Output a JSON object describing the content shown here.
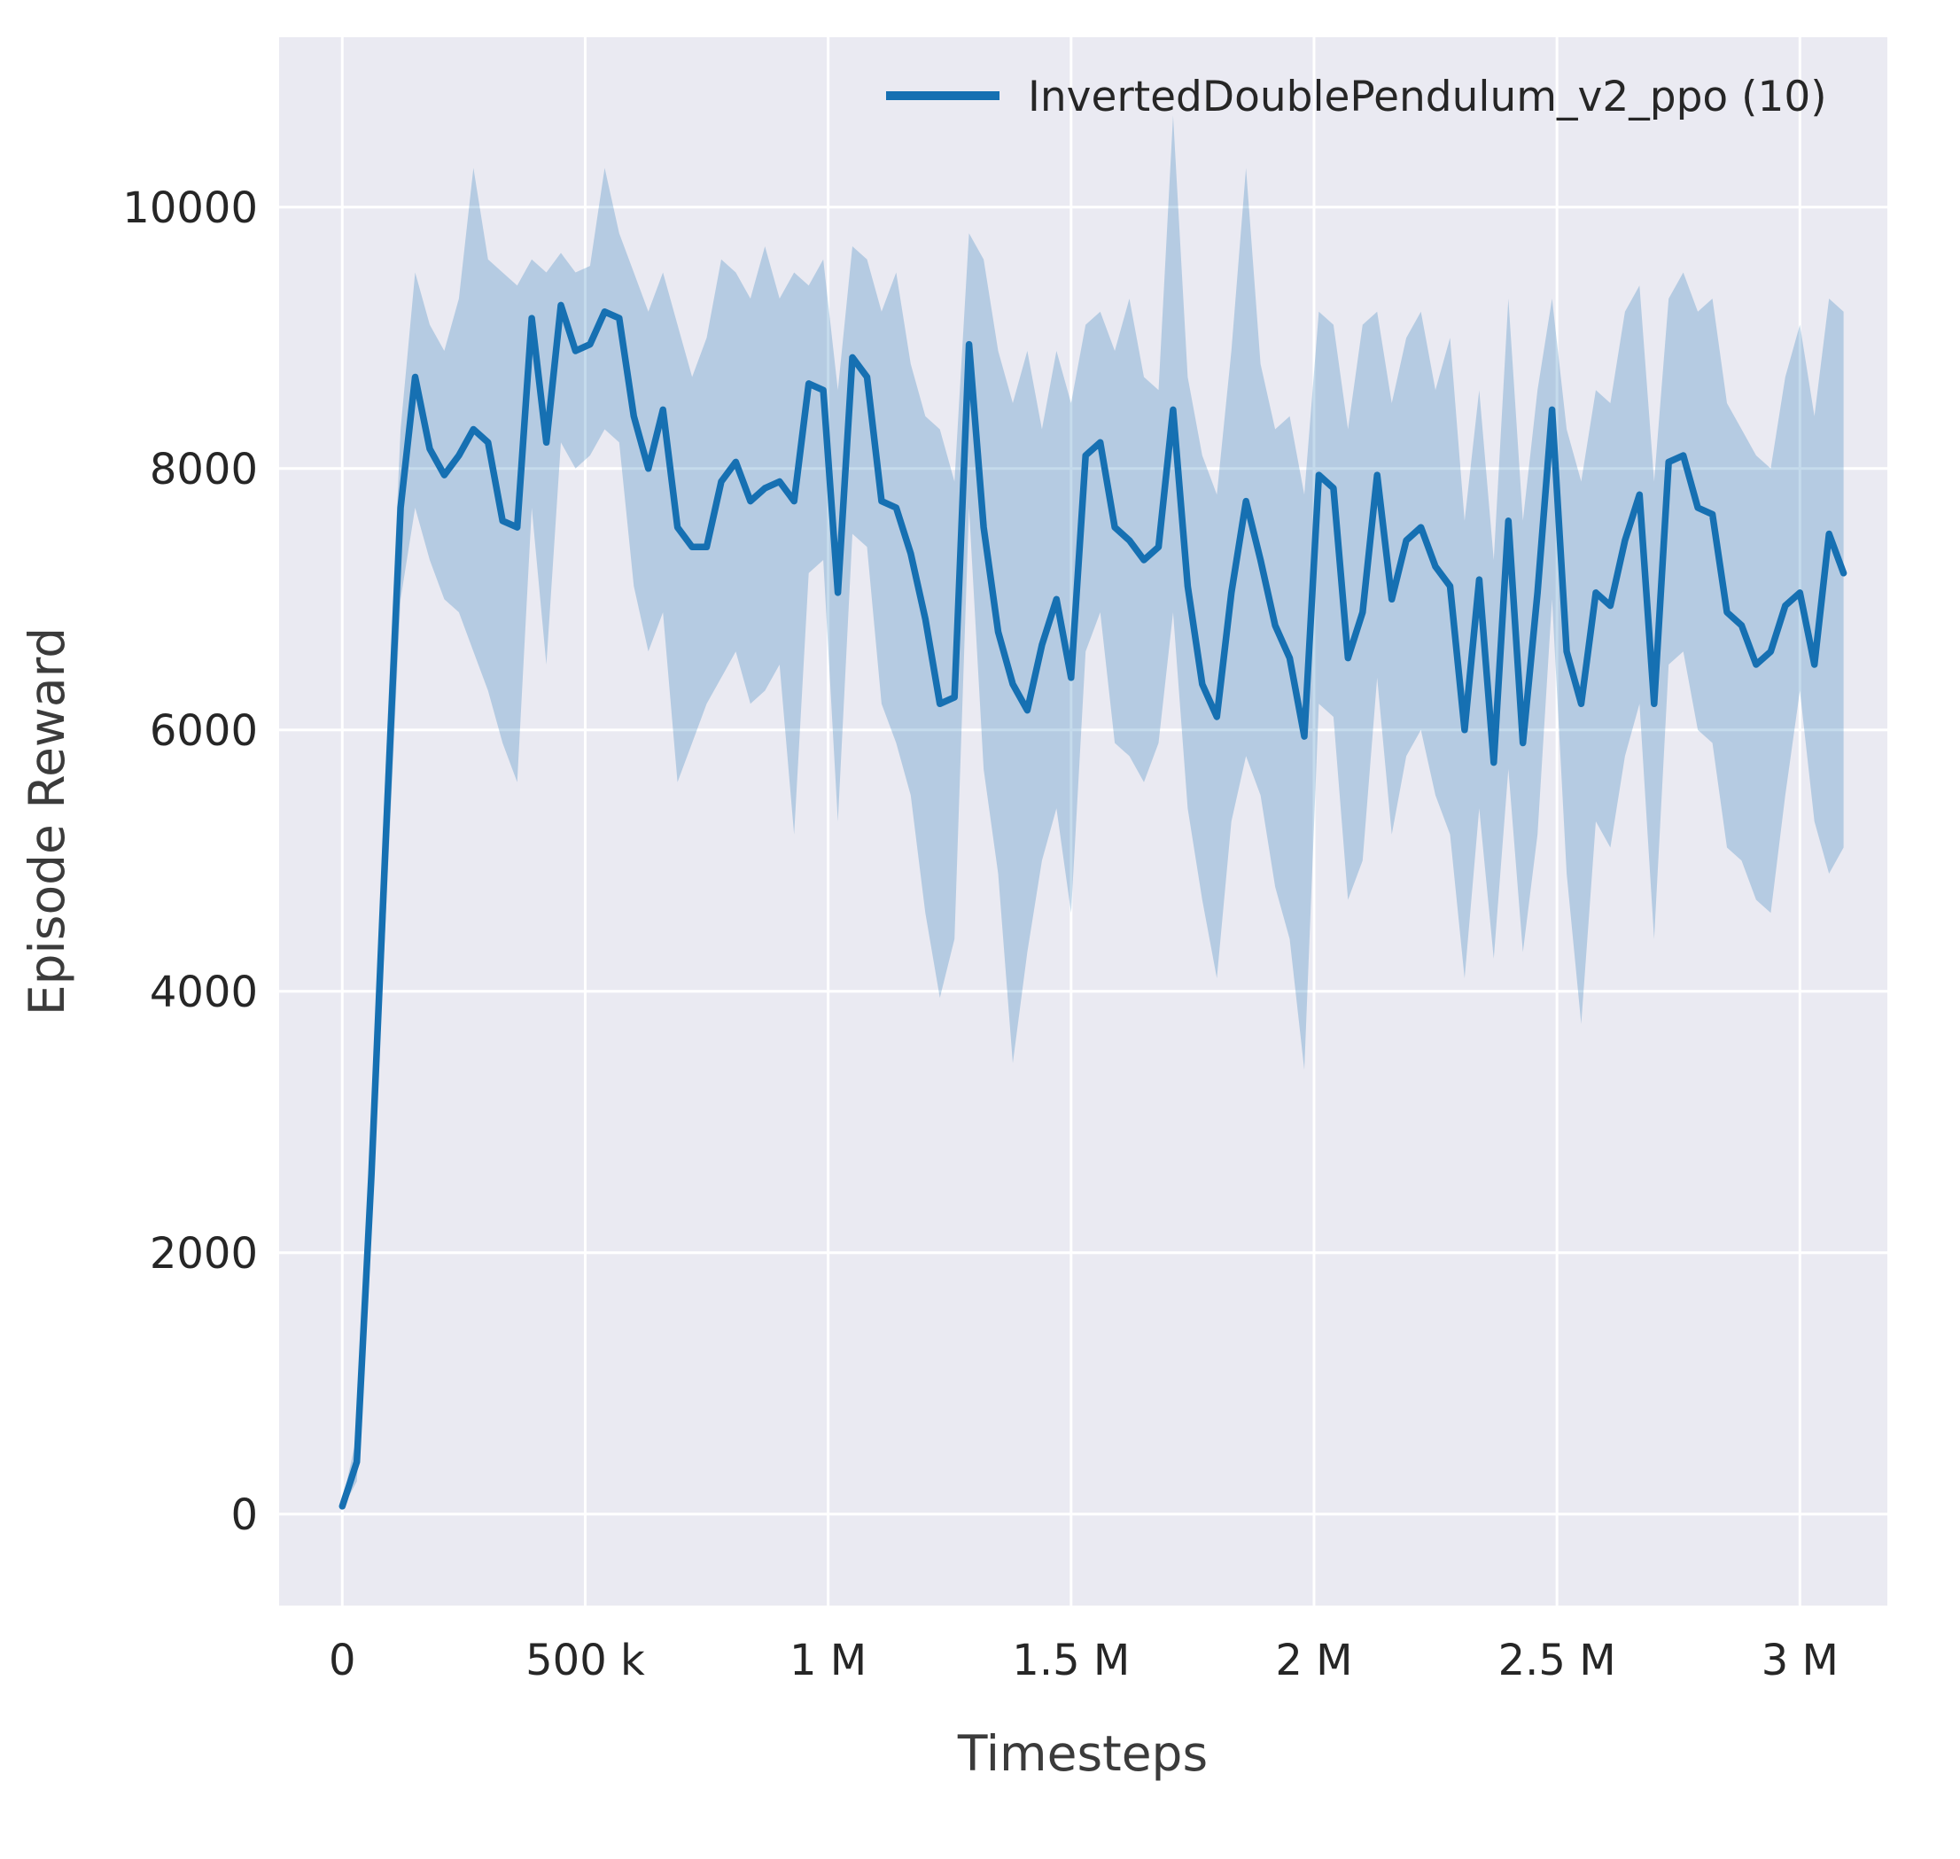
{
  "figure": {
    "background": "#ffffff",
    "plot_background": "#eaeaf2",
    "grid_color": "#ffffff"
  },
  "chart_data": {
    "type": "line",
    "title": "",
    "xlabel": "Timesteps",
    "ylabel": "Episode Reward",
    "grid": true,
    "legend_position": "upper right",
    "legend": [
      {
        "label": "InvertedDoublePendulum_v2_ppo (10)",
        "color": "#1670b2"
      }
    ],
    "xlim": [
      -130000,
      3180000
    ],
    "ylim": [
      -700,
      11300
    ],
    "x_ticks": [
      {
        "value": 0,
        "label": "0"
      },
      {
        "value": 500000,
        "label": "500 k"
      },
      {
        "value": 1000000,
        "label": "1 M"
      },
      {
        "value": 1500000,
        "label": "1.5 M"
      },
      {
        "value": 2000000,
        "label": "2 M"
      },
      {
        "value": 2500000,
        "label": "2.5 M"
      },
      {
        "value": 3000000,
        "label": "3 M"
      }
    ],
    "y_ticks": [
      {
        "value": 0,
        "label": "0"
      },
      {
        "value": 2000,
        "label": "2000"
      },
      {
        "value": 4000,
        "label": "4000"
      },
      {
        "value": 6000,
        "label": "6000"
      },
      {
        "value": 8000,
        "label": "8000"
      },
      {
        "value": 10000,
        "label": "10000"
      }
    ],
    "series": [
      {
        "name": "InvertedDoublePendulum_v2_ppo (10)",
        "color": "#1670b2",
        "band_opacity": 0.25,
        "x": [
          0,
          30000,
          60000,
          90000,
          120000,
          150000,
          180000,
          210000,
          240000,
          270000,
          300000,
          330000,
          360000,
          390000,
          420000,
          450000,
          480000,
          510000,
          540000,
          570000,
          600000,
          630000,
          660000,
          690000,
          720000,
          750000,
          780000,
          810000,
          840000,
          870000,
          900000,
          930000,
          960000,
          990000,
          1020000,
          1050000,
          1080000,
          1110000,
          1140000,
          1170000,
          1200000,
          1230000,
          1260000,
          1290000,
          1320000,
          1350000,
          1380000,
          1410000,
          1440000,
          1470000,
          1500000,
          1530000,
          1560000,
          1590000,
          1620000,
          1650000,
          1680000,
          1710000,
          1740000,
          1770000,
          1800000,
          1830000,
          1860000,
          1890000,
          1920000,
          1950000,
          1980000,
          2010000,
          2040000,
          2070000,
          2100000,
          2130000,
          2160000,
          2190000,
          2220000,
          2250000,
          2280000,
          2310000,
          2340000,
          2370000,
          2400000,
          2430000,
          2460000,
          2490000,
          2520000,
          2550000,
          2580000,
          2610000,
          2640000,
          2670000,
          2700000,
          2730000,
          2760000,
          2790000,
          2820000,
          2850000,
          2880000,
          2910000,
          2940000,
          2970000,
          3000000,
          3030000,
          3060000,
          3090000
        ],
        "mean": [
          60,
          400,
          2600,
          5200,
          7700,
          8700,
          8150,
          7950,
          8100,
          8300,
          8200,
          7600,
          7550,
          9150,
          8200,
          9250,
          8900,
          8950,
          9200,
          9150,
          8400,
          8000,
          8450,
          7550,
          7400,
          7400,
          7900,
          8050,
          7750,
          7850,
          7900,
          7750,
          8650,
          8600,
          7050,
          8850,
          8700,
          7750,
          7700,
          7350,
          6850,
          6200,
          6250,
          8950,
          7550,
          6750,
          6350,
          6150,
          6650,
          7000,
          6400,
          8100,
          8200,
          7550,
          7450,
          7300,
          7400,
          8450,
          7100,
          6350,
          6100,
          7050,
          7750,
          7300,
          6800,
          6550,
          5950,
          7950,
          7850,
          6550,
          6900,
          7950,
          7000,
          7450,
          7550,
          7250,
          7100,
          6000,
          7150,
          5750,
          7600,
          5900,
          7050,
          8450,
          6600,
          6200,
          7050,
          6950,
          7450,
          7800,
          6200,
          8050,
          8100,
          7700,
          7650,
          6900,
          6800,
          6500,
          6600,
          6950,
          7050,
          6500,
          7500,
          7200
        ],
        "band_high": [
          90,
          600,
          3000,
          5800,
          8300,
          9500,
          9100,
          8900,
          9300,
          10300,
          9600,
          9500,
          9400,
          9600,
          9500,
          9650,
          9500,
          9550,
          10300,
          9800,
          9500,
          9200,
          9500,
          9100,
          8700,
          9000,
          9600,
          9500,
          9300,
          9700,
          9300,
          9500,
          9400,
          9600,
          8600,
          9700,
          9600,
          9200,
          9500,
          8800,
          8400,
          8300,
          7900,
          9800,
          9600,
          8900,
          8500,
          8900,
          8300,
          8900,
          8500,
          9100,
          9200,
          8900,
          9300,
          8700,
          8600,
          10700,
          8700,
          8100,
          7800,
          8900,
          10300,
          8800,
          8300,
          8400,
          7800,
          9200,
          9100,
          8300,
          9100,
          9200,
          8500,
          9000,
          9200,
          8600,
          9000,
          7600,
          8600,
          7300,
          9300,
          7600,
          8600,
          9300,
          8300,
          7900,
          8600,
          8500,
          9200,
          9400,
          7900,
          9300,
          9500,
          9200,
          9300,
          8500,
          8300,
          8100,
          8000,
          8700,
          9100,
          8400,
          9300,
          9200
        ],
        "band_low": [
          40,
          250,
          2200,
          4600,
          7000,
          7700,
          7300,
          7000,
          6900,
          6600,
          6300,
          5900,
          5600,
          7700,
          6500,
          8200,
          8000,
          8100,
          8300,
          8200,
          7100,
          6600,
          6900,
          5600,
          5900,
          6200,
          6400,
          6600,
          6200,
          6300,
          6500,
          5200,
          7200,
          7300,
          5300,
          7500,
          7400,
          6200,
          5900,
          5500,
          4600,
          3950,
          4400,
          7700,
          5700,
          4900,
          3450,
          4300,
          5000,
          5400,
          4600,
          6600,
          6900,
          5900,
          5800,
          5600,
          5900,
          6900,
          5400,
          4700,
          4100,
          5300,
          5800,
          5500,
          4800,
          4400,
          3400,
          6200,
          6100,
          4700,
          5000,
          6400,
          5200,
          5800,
          6000,
          5500,
          5200,
          4100,
          5400,
          4250,
          5700,
          4300,
          5200,
          7000,
          4900,
          3750,
          5300,
          5100,
          5800,
          6200,
          4400,
          6500,
          6600,
          6000,
          5900,
          5100,
          5000,
          4700,
          4600,
          5500,
          6300,
          5300,
          4900,
          5100
        ]
      }
    ]
  }
}
